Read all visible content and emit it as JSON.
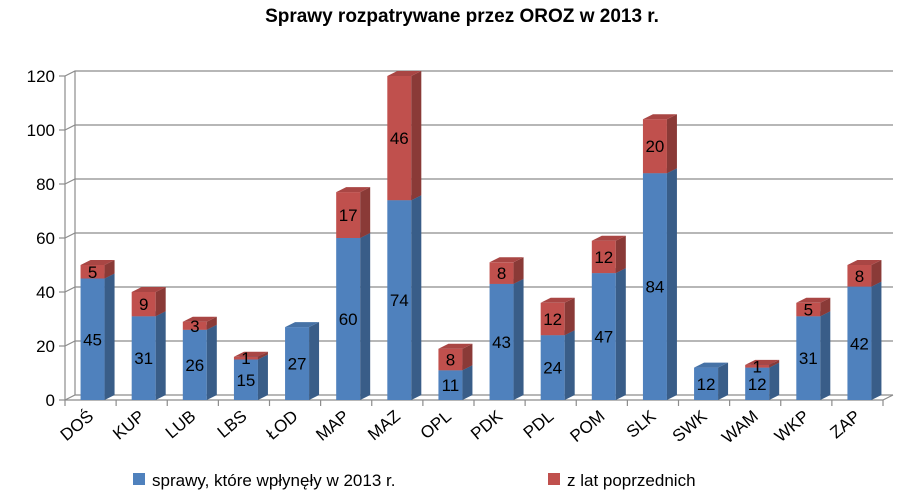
{
  "chart_data": {
    "type": "bar",
    "stacked": true,
    "three_d": true,
    "title": "Sprawy rozpatrywane przez OROZ w 2013 r.",
    "xlabel": "",
    "ylabel": "",
    "ylim": [
      0,
      120
    ],
    "yticks": [
      0,
      20,
      40,
      60,
      80,
      100,
      120
    ],
    "grid": true,
    "legend_position": "bottom",
    "categories": [
      "DOŚ",
      "KUP",
      "LUB",
      "LBS",
      "ŁOD",
      "MAP",
      "MAZ",
      "OPL",
      "PDK",
      "PDL",
      "POM",
      "SLK",
      "SWK",
      "WAM",
      "WKP",
      "ZAP"
    ],
    "series": [
      {
        "name": "sprawy, które wpłynęły w 2013 r.",
        "color": "#4f81bd",
        "values": [
          45,
          31,
          26,
          15,
          27,
          60,
          74,
          11,
          43,
          24,
          47,
          84,
          12,
          12,
          31,
          42
        ],
        "labels": [
          "45",
          "31",
          "26",
          "15",
          "27",
          "60",
          "74",
          "11",
          "43",
          "24",
          "47",
          "84",
          "12",
          "12",
          "31",
          "42"
        ]
      },
      {
        "name": "z lat poprzednich",
        "color": "#c0504d",
        "values": [
          5,
          9,
          3,
          1,
          0,
          17,
          46,
          8,
          8,
          12,
          12,
          20,
          0,
          1,
          5,
          8
        ],
        "labels": [
          "5",
          "9",
          "3",
          "1",
          "",
          "17",
          "46",
          "8",
          "8",
          "12",
          "12",
          "20",
          "",
          "1",
          "5",
          "8"
        ]
      }
    ]
  }
}
